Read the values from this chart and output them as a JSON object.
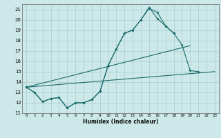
{
  "xlabel": "Humidex (Indice chaleur)",
  "background_color": "#cce8e8",
  "grid_color": "#aacccc",
  "line_color": "#1a6b6b",
  "xlim": [
    -0.5,
    23.5
  ],
  "ylim": [
    11,
    21.5
  ],
  "yticks": [
    11,
    12,
    13,
    14,
    15,
    16,
    17,
    18,
    19,
    20,
    21
  ],
  "xticks": [
    0,
    1,
    2,
    3,
    4,
    5,
    6,
    7,
    8,
    9,
    10,
    11,
    12,
    13,
    14,
    15,
    16,
    17,
    18,
    19,
    20,
    21,
    22,
    23
  ],
  "series": [
    {
      "x": [
        0,
        1,
        2,
        3,
        4,
        5,
        6,
        7,
        8,
        9,
        10,
        11,
        12,
        13,
        14,
        15,
        16,
        17,
        18
      ],
      "y": [
        13.5,
        13.0,
        12.1,
        12.4,
        12.5,
        11.5,
        12.0,
        12.0,
        12.3,
        13.1,
        15.6,
        17.2,
        18.7,
        19.0,
        20.0,
        21.1,
        20.7,
        19.4,
        18.7
      ]
    },
    {
      "x": [
        0,
        1,
        2,
        3,
        4,
        5,
        6,
        7,
        8,
        9,
        10,
        11,
        12,
        13,
        14,
        15,
        16,
        17,
        18,
        19,
        20,
        21
      ],
      "y": [
        13.5,
        13.0,
        12.1,
        12.4,
        12.5,
        11.5,
        12.0,
        12.0,
        12.3,
        13.1,
        15.6,
        17.2,
        18.7,
        19.0,
        20.0,
        21.2,
        20.1,
        19.4,
        18.7,
        17.6,
        15.1,
        15.0
      ]
    },
    {
      "x": [
        0,
        23
      ],
      "y": [
        13.5,
        15.0
      ]
    },
    {
      "x": [
        0,
        20
      ],
      "y": [
        13.5,
        17.5
      ]
    }
  ]
}
